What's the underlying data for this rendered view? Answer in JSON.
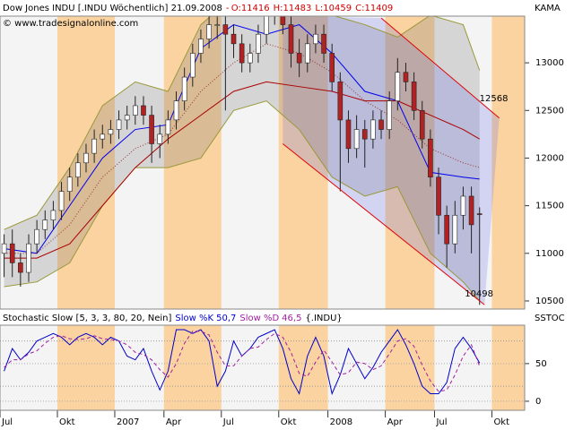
{
  "chart_data": [
    {
      "type": "candlestick",
      "title": "Dow Jones INDU [.INDU  Wöchentlich] 21.09.2008",
      "separator": "-",
      "header_values": [
        "O:11416",
        "H:11483",
        "L:10459",
        "C:11409"
      ],
      "copyright": "© www.tradesignalonline.com",
      "indicator_label": "KAMA",
      "categories": [
        "Jul",
        null,
        null,
        null,
        null,
        null,
        null,
        "Okt",
        null,
        null,
        null,
        null,
        null,
        null,
        "2007",
        null,
        null,
        null,
        null,
        null,
        "Apr",
        null,
        null,
        null,
        null,
        null,
        null,
        "Jul",
        null,
        null,
        null,
        null,
        null,
        null,
        "Okt",
        null,
        null,
        null,
        null,
        null,
        "2008",
        null,
        null,
        null,
        null,
        null,
        null,
        "Apr",
        null,
        null,
        null,
        null,
        null,
        "Jul",
        null,
        null,
        null,
        null,
        null,
        null,
        "Okt",
        null,
        null,
        null
      ],
      "open": [
        11000,
        11100,
        10900,
        10800,
        11100,
        11250,
        11350,
        11450,
        11650,
        11800,
        11950,
        12050,
        12200,
        12250,
        12300,
        12400,
        12450,
        12550,
        12450,
        12150,
        12250,
        12400,
        12600,
        12850,
        13100,
        13250,
        13400,
        13400,
        13300,
        13200,
        13000,
        13100,
        13300,
        13500,
        13600,
        13400,
        13100,
        13000,
        13200,
        13300,
        13100,
        12800,
        12400,
        12100,
        12300,
        12200,
        12400,
        12300,
        12600,
        12900,
        12800,
        12500,
        12200,
        11800,
        11400,
        11100,
        11400,
        11600,
        11416,
        null,
        null,
        null,
        null,
        null
      ],
      "high": [
        11200,
        11250,
        11000,
        11200,
        11350,
        11450,
        11550,
        11750,
        11900,
        12050,
        12150,
        12300,
        12350,
        12400,
        12500,
        12550,
        12650,
        12650,
        12550,
        12350,
        12500,
        12700,
        12950,
        13200,
        13350,
        13500,
        13550,
        13500,
        13400,
        13300,
        13200,
        13400,
        13600,
        13700,
        13700,
        13500,
        13250,
        13300,
        13400,
        13400,
        13200,
        12900,
        12500,
        12450,
        12400,
        12500,
        12500,
        12700,
        13050,
        13000,
        12900,
        12600,
        12300,
        11900,
        11500,
        11550,
        11700,
        11700,
        11483,
        null,
        null,
        null,
        null,
        null
      ],
      "low": [
        10750,
        10750,
        10650,
        10700,
        11000,
        11150,
        11250,
        11350,
        11550,
        11700,
        11850,
        11950,
        12100,
        12150,
        12200,
        12300,
        12350,
        12350,
        11950,
        12000,
        12150,
        12300,
        12500,
        12750,
        13000,
        13150,
        13250,
        12500,
        13050,
        12900,
        12900,
        13000,
        13200,
        13400,
        13300,
        12950,
        12850,
        12900,
        13100,
        13000,
        12700,
        11650,
        11950,
        12000,
        11900,
        12100,
        12200,
        12200,
        12500,
        12700,
        12400,
        12100,
        11700,
        11200,
        10850,
        11000,
        11250,
        11000,
        10459,
        null,
        null,
        null,
        null,
        null
      ],
      "close": [
        11100,
        10900,
        10800,
        11100,
        11250,
        11350,
        11450,
        11650,
        11800,
        11950,
        12050,
        12200,
        12250,
        12300,
        12400,
        12450,
        12550,
        12450,
        12150,
        12250,
        12400,
        12600,
        12850,
        13100,
        13250,
        13400,
        13400,
        13300,
        13200,
        13000,
        13100,
        13300,
        13500,
        13600,
        13400,
        13100,
        13000,
        13200,
        13300,
        13100,
        12800,
        12400,
        12100,
        12300,
        12200,
        12400,
        12300,
        12600,
        12900,
        12800,
        12500,
        12200,
        11800,
        11400,
        11100,
        11400,
        11600,
        11300,
        11409,
        null,
        null,
        null,
        null,
        null
      ],
      "up_color": "#ffffff",
      "down_color": "#b22222",
      "lines": [
        {
          "role": "band-upper",
          "color": "#99993a",
          "x": [
            0,
            4,
            8,
            12,
            16,
            20,
            24,
            28,
            32,
            36,
            40,
            44,
            48,
            52,
            56,
            58
          ],
          "values": [
            11250,
            11400,
            11900,
            12550,
            12800,
            12700,
            13400,
            13700,
            13700,
            13500,
            13500,
            13400,
            13270,
            13500,
            13400,
            12920
          ]
        },
        {
          "role": "band-lower",
          "color": "#99993a",
          "x": [
            0,
            4,
            8,
            12,
            16,
            20,
            24,
            28,
            32,
            36,
            40,
            44,
            48,
            52,
            56,
            58
          ],
          "values": [
            10650,
            10700,
            10900,
            11500,
            11900,
            11900,
            12000,
            12500,
            12600,
            12300,
            11800,
            11600,
            11700,
            11000,
            10700,
            10500
          ]
        },
        {
          "role": "kama",
          "color": "#0000ee",
          "x": [
            0,
            4,
            8,
            12,
            16,
            20,
            24,
            28,
            32,
            36,
            40,
            44,
            48,
            52,
            56,
            58
          ],
          "values": [
            11050,
            11000,
            11500,
            12000,
            12300,
            12350,
            13150,
            13400,
            13300,
            13400,
            13100,
            12700,
            12600,
            11850,
            11800,
            11780
          ]
        },
        {
          "role": "average",
          "color": "#aa0000",
          "x": [
            0,
            4,
            8,
            12,
            16,
            20,
            24,
            28,
            32,
            36,
            40,
            44,
            48,
            52,
            56,
            58
          ],
          "values": [
            10950,
            10950,
            11100,
            11500,
            11900,
            12200,
            12450,
            12700,
            12800,
            12750,
            12700,
            12600,
            12600,
            12450,
            12300,
            12200
          ]
        },
        {
          "role": "dotted",
          "color": "#993333",
          "x": [
            0,
            4,
            8,
            12,
            16,
            20,
            24,
            28,
            32,
            36,
            40,
            44,
            48,
            52,
            56,
            58
          ],
          "values": [
            11000,
            11000,
            11300,
            11800,
            12100,
            12250,
            12700,
            13000,
            13200,
            13100,
            12900,
            12600,
            12400,
            12100,
            11950,
            11900
          ]
        }
      ],
      "channel": {
        "color": "#e00000",
        "upper": {
          "x": [
            46,
            60.4
          ],
          "values": [
            13470,
            12420
          ],
          "label": "12568"
        },
        "lower": {
          "x": [
            34,
            58.6
          ],
          "values": [
            12150,
            10460
          ],
          "label": "10498"
        }
      },
      "ylim": [
        10415,
        13490
      ],
      "yticks": [
        10500,
        11000,
        11500,
        12000,
        12500,
        13000
      ]
    },
    {
      "type": "line",
      "title": "Stochastic Slow [5, 3, 3, 80, 20, Nein]",
      "symbol": "{.INDU}",
      "indicator_label": "SSTOC",
      "series": [
        {
          "name": "Slow %K",
          "last_label": "50,7",
          "color": "#0000cc",
          "dash": false,
          "values": [
            40,
            70,
            55,
            65,
            80,
            85,
            90,
            85,
            75,
            85,
            90,
            85,
            75,
            85,
            80,
            60,
            55,
            70,
            40,
            15,
            40,
            95,
            95,
            90,
            95,
            80,
            20,
            40,
            80,
            60,
            70,
            85,
            90,
            95,
            70,
            30,
            10,
            60,
            85,
            60,
            10,
            35,
            70,
            50,
            30,
            45,
            65,
            80,
            95,
            75,
            50,
            20,
            10,
            10,
            25,
            70,
            85,
            70,
            50.7,
            null,
            null,
            null,
            null,
            null
          ]
        },
        {
          "name": "Slow %D",
          "last_label": "46,5",
          "color": "#a020a0",
          "dash": true,
          "values": [
            45,
            55,
            55,
            63,
            67,
            77,
            85,
            87,
            83,
            82,
            83,
            87,
            83,
            82,
            80,
            75,
            65,
            62,
            55,
            42,
            32,
            50,
            77,
            93,
            93,
            88,
            65,
            47,
            47,
            60,
            70,
            72,
            82,
            90,
            85,
            65,
            37,
            33,
            52,
            68,
            52,
            35,
            38,
            52,
            50,
            42,
            47,
            63,
            80,
            83,
            73,
            48,
            27,
            13,
            15,
            35,
            60,
            75,
            46.5,
            null,
            null,
            null,
            null,
            null
          ]
        }
      ],
      "levels": [
        80,
        20
      ],
      "ylim": [
        -12,
        101
      ],
      "yticks": [
        0,
        50
      ],
      "grid": true
    }
  ]
}
